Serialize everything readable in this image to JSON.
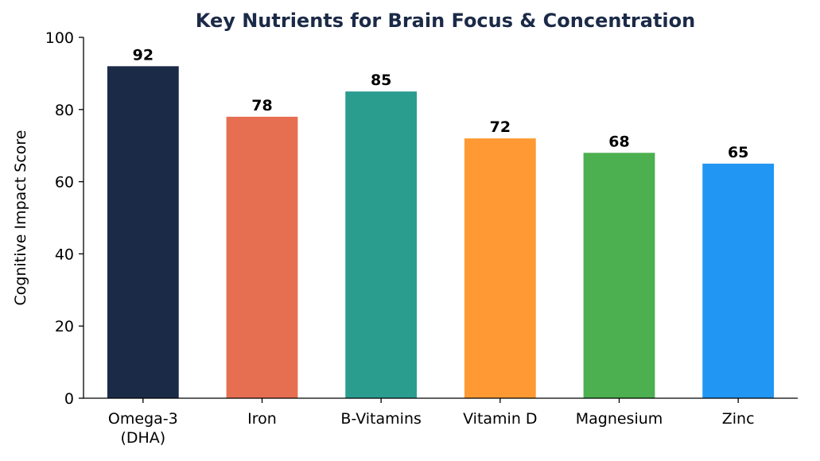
{
  "chart_data": {
    "type": "bar",
    "title": "Key Nutrients for Brain Focus & Concentration",
    "xlabel": "",
    "ylabel": "Cognitive Impact Score",
    "ylim": [
      0,
      100
    ],
    "yticks": [
      0,
      20,
      40,
      60,
      80,
      100
    ],
    "categories": [
      [
        "Omega-3",
        "(DHA)"
      ],
      [
        "Iron"
      ],
      [
        "B-Vitamins"
      ],
      [
        "Vitamin D"
      ],
      [
        "Magnesium"
      ],
      [
        "Zinc"
      ]
    ],
    "values": [
      92,
      78,
      85,
      72,
      68,
      65
    ],
    "colors": [
      "#1b2a47",
      "#e76f51",
      "#2a9d8f",
      "#ff9933",
      "#4caf50",
      "#2196f3"
    ],
    "grid": false,
    "legend": "none"
  }
}
